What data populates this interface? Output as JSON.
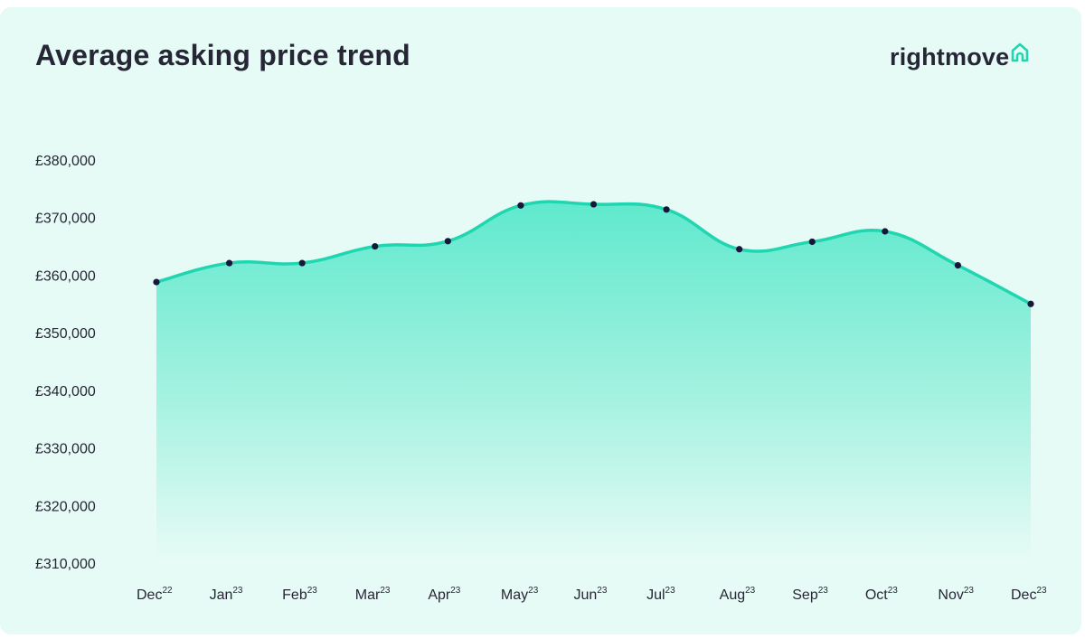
{
  "header": {
    "title": "Average asking price trend",
    "logo_text": "rightmove",
    "logo_icon": "house-outline-icon"
  },
  "colors": {
    "background": "#e6fbf5",
    "line": "#1fd6b0",
    "fill_top": "#5fe9cd",
    "fill_bottom": "#e8fbf6",
    "point": "#17173a",
    "text": "#262637"
  },
  "chart_data": {
    "type": "area",
    "title": "Average asking price trend",
    "xlabel": "",
    "ylabel": "",
    "categories": [
      {
        "month": "Dec",
        "year": "22"
      },
      {
        "month": "Jan",
        "year": "23"
      },
      {
        "month": "Feb",
        "year": "23"
      },
      {
        "month": "Mar",
        "year": "23"
      },
      {
        "month": "Apr",
        "year": "23"
      },
      {
        "month": "May",
        "year": "23"
      },
      {
        "month": "Jun",
        "year": "23"
      },
      {
        "month": "Jul",
        "year": "23"
      },
      {
        "month": "Aug",
        "year": "23"
      },
      {
        "month": "Sep",
        "year": "23"
      },
      {
        "month": "Oct",
        "year": "23"
      },
      {
        "month": "Nov",
        "year": "23"
      },
      {
        "month": "Dec",
        "year": "23"
      }
    ],
    "values": [
      358800,
      362100,
      362100,
      365000,
      365900,
      372100,
      372300,
      371400,
      364500,
      365800,
      367600,
      361700,
      355000
    ],
    "ylim": [
      310000,
      380000
    ],
    "yticks": [
      {
        "value": 380000,
        "label": "£380,000"
      },
      {
        "value": 370000,
        "label": "£370,000"
      },
      {
        "value": 360000,
        "label": "£360,000"
      },
      {
        "value": 350000,
        "label": "£350,000"
      },
      {
        "value": 340000,
        "label": "£340,000"
      },
      {
        "value": 330000,
        "label": "£330,000"
      },
      {
        "value": 320000,
        "label": "£320,000"
      },
      {
        "value": 310000,
        "label": "£310,000"
      }
    ],
    "grid": false,
    "smooth": true,
    "markers": true
  }
}
